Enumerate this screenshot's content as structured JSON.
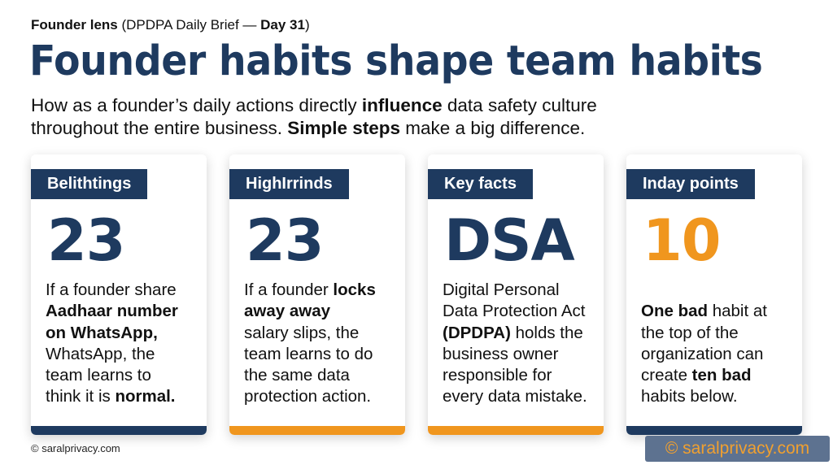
{
  "header": {
    "kicker_bold": "Founder lens",
    "kicker_mid": " (DPDPA Daily Brief — ",
    "kicker_day": "Day 31",
    "kicker_end": ")",
    "title": "Founder habits shape team habits",
    "subtitle": [
      {
        "text": "How as a founder’s daily actions directly ",
        "bold": false
      },
      {
        "text": "influence",
        "bold": true
      },
      {
        "text": " data safety culture",
        "bold": false
      },
      {
        "br": true
      },
      {
        "text": "throughout the entire business. ",
        "bold": false
      },
      {
        "text": "Simple steps",
        "bold": true
      },
      {
        "text": " make a big difference.",
        "bold": false
      }
    ]
  },
  "colors": {
    "navy": "#1e3a5f",
    "orange": "#f0961e"
  },
  "cards": [
    {
      "label": "Belithtings",
      "big": "23",
      "big_color": "#1e3a5f",
      "bar_color": "#1e3a5f",
      "body_offset": 0,
      "lines": [
        [
          {
            "text": "If a founder share",
            "bold": false
          }
        ],
        [
          {
            "text": "Aadhaar number",
            "bold": true
          }
        ],
        [
          {
            "text": "on WhatsApp,",
            "bold": true
          }
        ],
        [
          {
            "text": "WhatsApp, the",
            "bold": false
          }
        ],
        [
          {
            "text": "team learns to",
            "bold": false
          }
        ],
        [
          {
            "text": "think it is ",
            "bold": false
          },
          {
            "text": "normal.",
            "bold": true
          }
        ]
      ]
    },
    {
      "label": "HighIrrinds",
      "big": "23",
      "big_color": "#1e3a5f",
      "bar_color": "#f0961e",
      "body_offset": 0,
      "lines": [
        [
          {
            "text": "If a founder ",
            "bold": false
          },
          {
            "text": "locks",
            "bold": true
          }
        ],
        [
          {
            "text": "away away",
            "bold": true
          }
        ],
        [
          {
            "text": "salary slips, the",
            "bold": false
          }
        ],
        [
          {
            "text": "team learns to do",
            "bold": false
          }
        ],
        [
          {
            "text": "the same data",
            "bold": false
          }
        ],
        [
          {
            "text": "protection action.",
            "bold": false
          }
        ]
      ]
    },
    {
      "label": "Key facts",
      "big": "DSA",
      "big_color": "#1e3a5f",
      "bar_color": "#f0961e",
      "body_offset": 0,
      "lines": [
        [
          {
            "text": "Digital Personal",
            "bold": false
          }
        ],
        [
          {
            "text": "Data Protection Act",
            "bold": false
          }
        ],
        [
          {
            "text": "(DPDPA)",
            "bold": true
          },
          {
            "text": " holds the",
            "bold": false
          }
        ],
        [
          {
            "text": "business owner",
            "bold": false
          }
        ],
        [
          {
            "text": "responsible for",
            "bold": false
          }
        ],
        [
          {
            "text": "every data mistake.",
            "bold": false
          }
        ]
      ]
    },
    {
      "label": "Inday points",
      "big": "10",
      "big_color": "#f0961e",
      "bar_color": "#1e3a5f",
      "body_offset": 1,
      "lines": [
        [
          {
            "text": "One bad",
            "bold": true
          },
          {
            "text": " habit at",
            "bold": false
          }
        ],
        [
          {
            "text": "the top of the",
            "bold": false
          }
        ],
        [
          {
            "text": "organization can",
            "bold": false
          }
        ],
        [
          {
            "text": "create ",
            "bold": false
          },
          {
            "text": "ten bad",
            "bold": true
          }
        ],
        [
          {
            "text": "habits below.",
            "bold": false
          }
        ]
      ]
    }
  ],
  "footer": {
    "copyright": "© saralprivacy.com"
  },
  "watermark": "© saralprivacy.com"
}
